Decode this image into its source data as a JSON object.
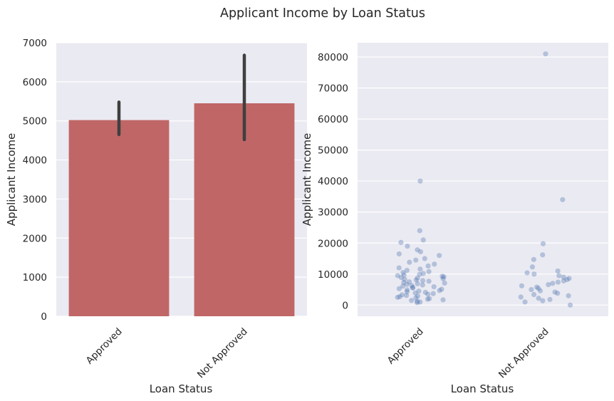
{
  "title": "Applicant Income by Loan Status",
  "chart_data": [
    {
      "type": "bar",
      "categories": [
        "Approved",
        "Not Approved"
      ],
      "values": [
        5020,
        5450
      ],
      "error_bars": [
        [
          4650,
          5480
        ],
        [
          4520,
          6680
        ]
      ],
      "xlabel": "Loan Status",
      "ylabel": "Applicant Income",
      "ylim": [
        0,
        7000
      ],
      "yticks": [
        0,
        1000,
        2000,
        3000,
        4000,
        5000,
        6000,
        7000
      ],
      "grid": true,
      "colors": {
        "bar": "#c06666",
        "errorbar": "#3f3f3f",
        "background": "#eaeaf2"
      }
    },
    {
      "type": "scatter",
      "categories": [
        "Approved",
        "Not Approved"
      ],
      "xlabel": "Loan Status",
      "ylabel": "Applicant Income",
      "ylim": [
        -3600,
        84600
      ],
      "yticks": [
        0,
        10000,
        20000,
        30000,
        40000,
        50000,
        60000,
        70000,
        80000
      ],
      "grid": true,
      "colors": {
        "point": "#4c72b0",
        "background": "#eaeaf2"
      },
      "series": [
        {
          "values": [
            40000,
            24000,
            21000,
            20200,
            19000,
            17800,
            17200,
            16500,
            16000,
            15000,
            14500,
            13800,
            13200,
            12600,
            12000,
            11600,
            11200,
            10800,
            10500,
            10200,
            9900,
            9700,
            9500,
            9300,
            9100,
            8900,
            8700,
            8500,
            8300,
            8100,
            7900,
            7700,
            7500,
            7300,
            7100,
            6900,
            6700,
            6500,
            6300,
            6100,
            5900,
            5700,
            5500,
            5300,
            5100,
            4900,
            4700,
            4500,
            4300,
            4100,
            3900,
            3700,
            3500,
            3300,
            3100,
            2900,
            2700,
            2500,
            2300,
            2100,
            1900,
            1700,
            1500,
            1200,
            1000,
            800
          ]
        },
        {
          "values": [
            81000,
            34000,
            19800,
            16200,
            14700,
            12300,
            11000,
            10400,
            10000,
            9500,
            9000,
            8600,
            8200,
            7800,
            7400,
            7000,
            6600,
            6200,
            5800,
            5400,
            5000,
            4600,
            4200,
            3800,
            3400,
            3000,
            2600,
            2200,
            1800,
            1400,
            1000,
            0
          ]
        }
      ]
    }
  ]
}
